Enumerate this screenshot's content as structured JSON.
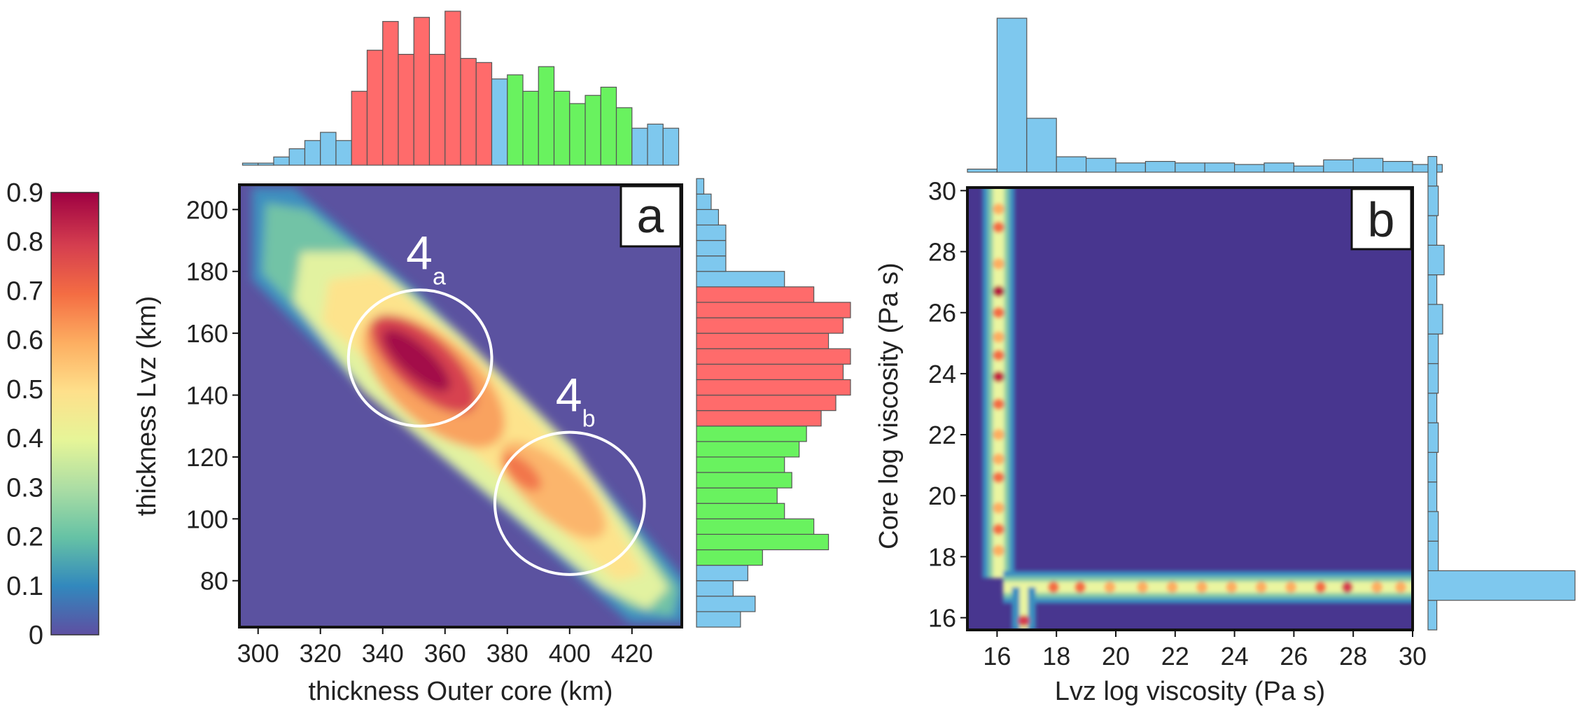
{
  "colors": {
    "blue_bar": "#7ec8ee",
    "red_bar": "#ff6b6b",
    "green_bar": "#69f25f",
    "bar_edge": "#555555",
    "background": "#5b52a0",
    "background_b": "#48368f",
    "frame": "#111111"
  },
  "colorbar": {
    "ticks": [
      "0.9",
      "0.8",
      "0.7",
      "0.6",
      "0.5",
      "0.4",
      "0.3",
      "0.2",
      "0.1",
      "0"
    ],
    "range": [
      0,
      0.9
    ]
  },
  "chart_data": [
    {
      "id": "a",
      "type": "heatmap",
      "panel_label": "a",
      "xlabel": "thickness Outer core (km)",
      "ylabel": "thickness Lvz (km)",
      "xlim": [
        294,
        436
      ],
      "ylim": [
        65,
        208
      ],
      "xticks": [
        "300",
        "320",
        "340",
        "360",
        "380",
        "400",
        "420"
      ],
      "yticks": [
        "80",
        "100",
        "120",
        "140",
        "160",
        "180",
        "200"
      ],
      "annotations": [
        {
          "base": "4",
          "sub": "a",
          "circle_center": [
            352,
            152
          ],
          "circle_radius_x": 23,
          "circle_radius_y": 22
        },
        {
          "base": "4",
          "sub": "b",
          "circle_center": [
            400,
            105
          ],
          "circle_radius_x": 24,
          "circle_radius_y": 23
        }
      ],
      "top_hist": {
        "bin_start": 295,
        "bin_width": 5,
        "counts": [
          1,
          1,
          4,
          8,
          12,
          16,
          12,
          36,
          56,
          70,
          54,
          72,
          54,
          75,
          52,
          50,
          42,
          44,
          36,
          48,
          36,
          30,
          34,
          38,
          28,
          18,
          20,
          18
        ],
        "groups": [
          "blue",
          "blue",
          "blue",
          "blue",
          "blue",
          "blue",
          "blue",
          "red",
          "red",
          "red",
          "red",
          "red",
          "red",
          "red",
          "red",
          "red",
          "blue",
          "green",
          "green",
          "green",
          "green",
          "green",
          "green",
          "green",
          "green",
          "blue",
          "blue",
          "blue"
        ]
      },
      "right_hist": {
        "bin_start": 65,
        "bin_width": 5,
        "counts": [
          6,
          8,
          5,
          7,
          9,
          18,
          16,
          12,
          11,
          13,
          12,
          14,
          15,
          17,
          19,
          21,
          20,
          21,
          18,
          20,
          21,
          16,
          12,
          4,
          4,
          4,
          3,
          2,
          1
        ],
        "groups": [
          "blue",
          "blue",
          "blue",
          "blue",
          "green",
          "green",
          "green",
          "green",
          "green",
          "green",
          "green",
          "green",
          "green",
          "red",
          "red",
          "red",
          "red",
          "red",
          "red",
          "red",
          "red",
          "red",
          "blue",
          "blue",
          "blue",
          "blue",
          "blue",
          "blue",
          "blue"
        ]
      }
    },
    {
      "id": "b",
      "type": "heatmap",
      "panel_label": "b",
      "xlabel": "Lvz log viscosity (Pa s)",
      "ylabel": "Core log  viscosity (Pa s)",
      "xlim": [
        15,
        30
      ],
      "ylim": [
        15.6,
        30.1
      ],
      "xticks": [
        "16",
        "18",
        "20",
        "22",
        "24",
        "26",
        "28",
        "30"
      ],
      "yticks": [
        "16",
        "18",
        "20",
        "22",
        "24",
        "26",
        "28",
        "30"
      ],
      "top_hist": {
        "bin_start": 15,
        "bin_width": 1,
        "counts": [
          2,
          100,
          35,
          10,
          9,
          6,
          7,
          6,
          6,
          5,
          6,
          4,
          8,
          9,
          7,
          5
        ],
        "groups": []
      },
      "right_hist": {
        "bin_start": 15.6,
        "bin_width": 0.97,
        "counts": [
          6,
          100,
          7,
          7,
          6,
          6,
          7,
          6,
          7,
          7,
          10,
          6,
          11,
          6,
          7,
          6
        ],
        "groups": []
      }
    }
  ]
}
